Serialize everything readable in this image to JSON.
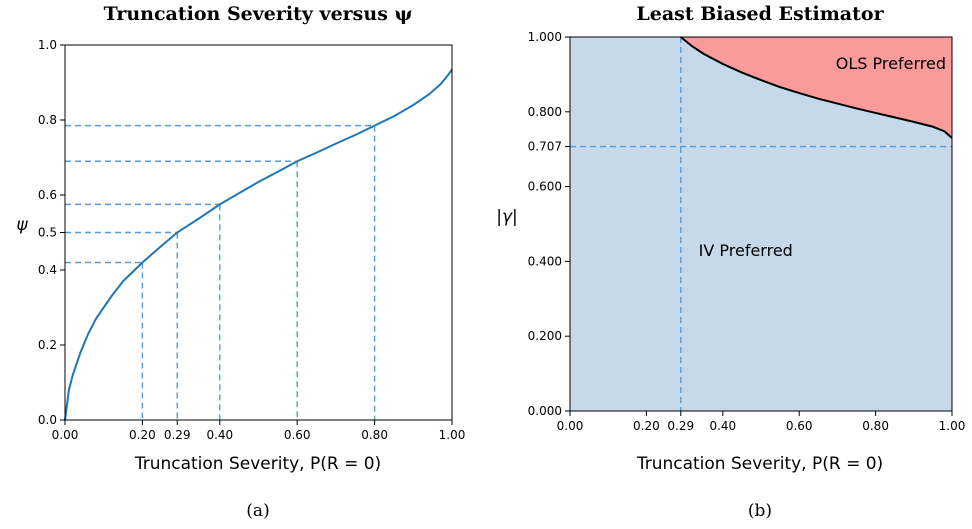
{
  "chart_data": [
    {
      "type": "line",
      "title": "Truncation Severity versus ψ",
      "xlabel": "Truncation Severity, P(R = 0)",
      "ylabel": "ψ",
      "caption": "(a)",
      "xlim": [
        0,
        1
      ],
      "ylim": [
        0,
        1
      ],
      "grid": false,
      "x_ticks": [
        0.0,
        0.2,
        0.29,
        0.4,
        0.6,
        0.8,
        1.0
      ],
      "x_tick_labels": [
        "0.00",
        "0.20",
        "0.29",
        "0.40",
        "0.60",
        "0.80",
        "1.00"
      ],
      "y_ticks": [
        0.0,
        0.2,
        0.4,
        0.5,
        0.6,
        0.8,
        1.0
      ],
      "y_tick_labels": [
        "0.0",
        "0.2",
        "0.4",
        "0.5",
        "0.6",
        "0.8",
        "1.0"
      ],
      "series": [
        {
          "color": "#1f77b4",
          "x": [
            0.0,
            0.01,
            0.02,
            0.04,
            0.06,
            0.08,
            0.1,
            0.12,
            0.15,
            0.2,
            0.25,
            0.29,
            0.35,
            0.4,
            0.45,
            0.5,
            0.55,
            0.6,
            0.65,
            0.7,
            0.75,
            0.8,
            0.85,
            0.9,
            0.94,
            0.97,
            0.99,
            1.0
          ],
          "y": [
            0.0,
            0.08,
            0.12,
            0.18,
            0.23,
            0.27,
            0.3,
            0.33,
            0.37,
            0.42,
            0.465,
            0.5,
            0.54,
            0.575,
            0.605,
            0.635,
            0.662,
            0.69,
            0.713,
            0.737,
            0.76,
            0.785,
            0.81,
            0.84,
            0.868,
            0.895,
            0.92,
            0.935
          ]
        }
      ],
      "reference_lines": {
        "color": "#5b9bd5",
        "style": "dashed",
        "points": [
          {
            "x": 0.2,
            "y": 0.42
          },
          {
            "x": 0.29,
            "y": 0.5
          },
          {
            "x": 0.4,
            "y": 0.575
          },
          {
            "x": 0.6,
            "y": 0.69
          },
          {
            "x": 0.8,
            "y": 0.785
          }
        ]
      }
    },
    {
      "type": "area",
      "title": "Least Biased Estimator",
      "xlabel": "Truncation Severity, P(R = 0)",
      "ylabel": "|γ|",
      "caption": "(b)",
      "xlim": [
        0,
        1
      ],
      "ylim": [
        0,
        1
      ],
      "grid": false,
      "x_ticks": [
        0.0,
        0.2,
        0.29,
        0.4,
        0.6,
        0.8,
        1.0
      ],
      "x_tick_labels": [
        "0.00",
        "0.20",
        "0.29",
        "0.40",
        "0.60",
        "0.80",
        "1.00"
      ],
      "y_ticks": [
        0.0,
        0.2,
        0.4,
        0.6,
        0.707,
        0.8,
        1.0
      ],
      "y_tick_labels": [
        "0.000",
        "0.200",
        "0.400",
        "0.600",
        "0.707",
        "0.800",
        "1.000"
      ],
      "boundary": {
        "color": "#000000",
        "x": [
          0.29,
          0.32,
          0.35,
          0.4,
          0.45,
          0.5,
          0.55,
          0.6,
          0.65,
          0.7,
          0.75,
          0.8,
          0.85,
          0.9,
          0.95,
          0.98,
          1.0
        ],
        "y": [
          1.0,
          0.975,
          0.955,
          0.928,
          0.905,
          0.885,
          0.866,
          0.85,
          0.835,
          0.822,
          0.809,
          0.797,
          0.785,
          0.773,
          0.76,
          0.748,
          0.73
        ]
      },
      "regions": [
        {
          "label": "OLS Preferred",
          "color": "#f99b9b",
          "label_x": 0.84,
          "label_y": 0.915
        },
        {
          "label": "IV Preferred",
          "color": "#c5d9ea",
          "label_x": 0.46,
          "label_y": 0.415
        }
      ],
      "reference_lines": {
        "color": "#5b9bd5",
        "style": "dashed",
        "x": 0.29,
        "y": 0.707
      }
    }
  ]
}
